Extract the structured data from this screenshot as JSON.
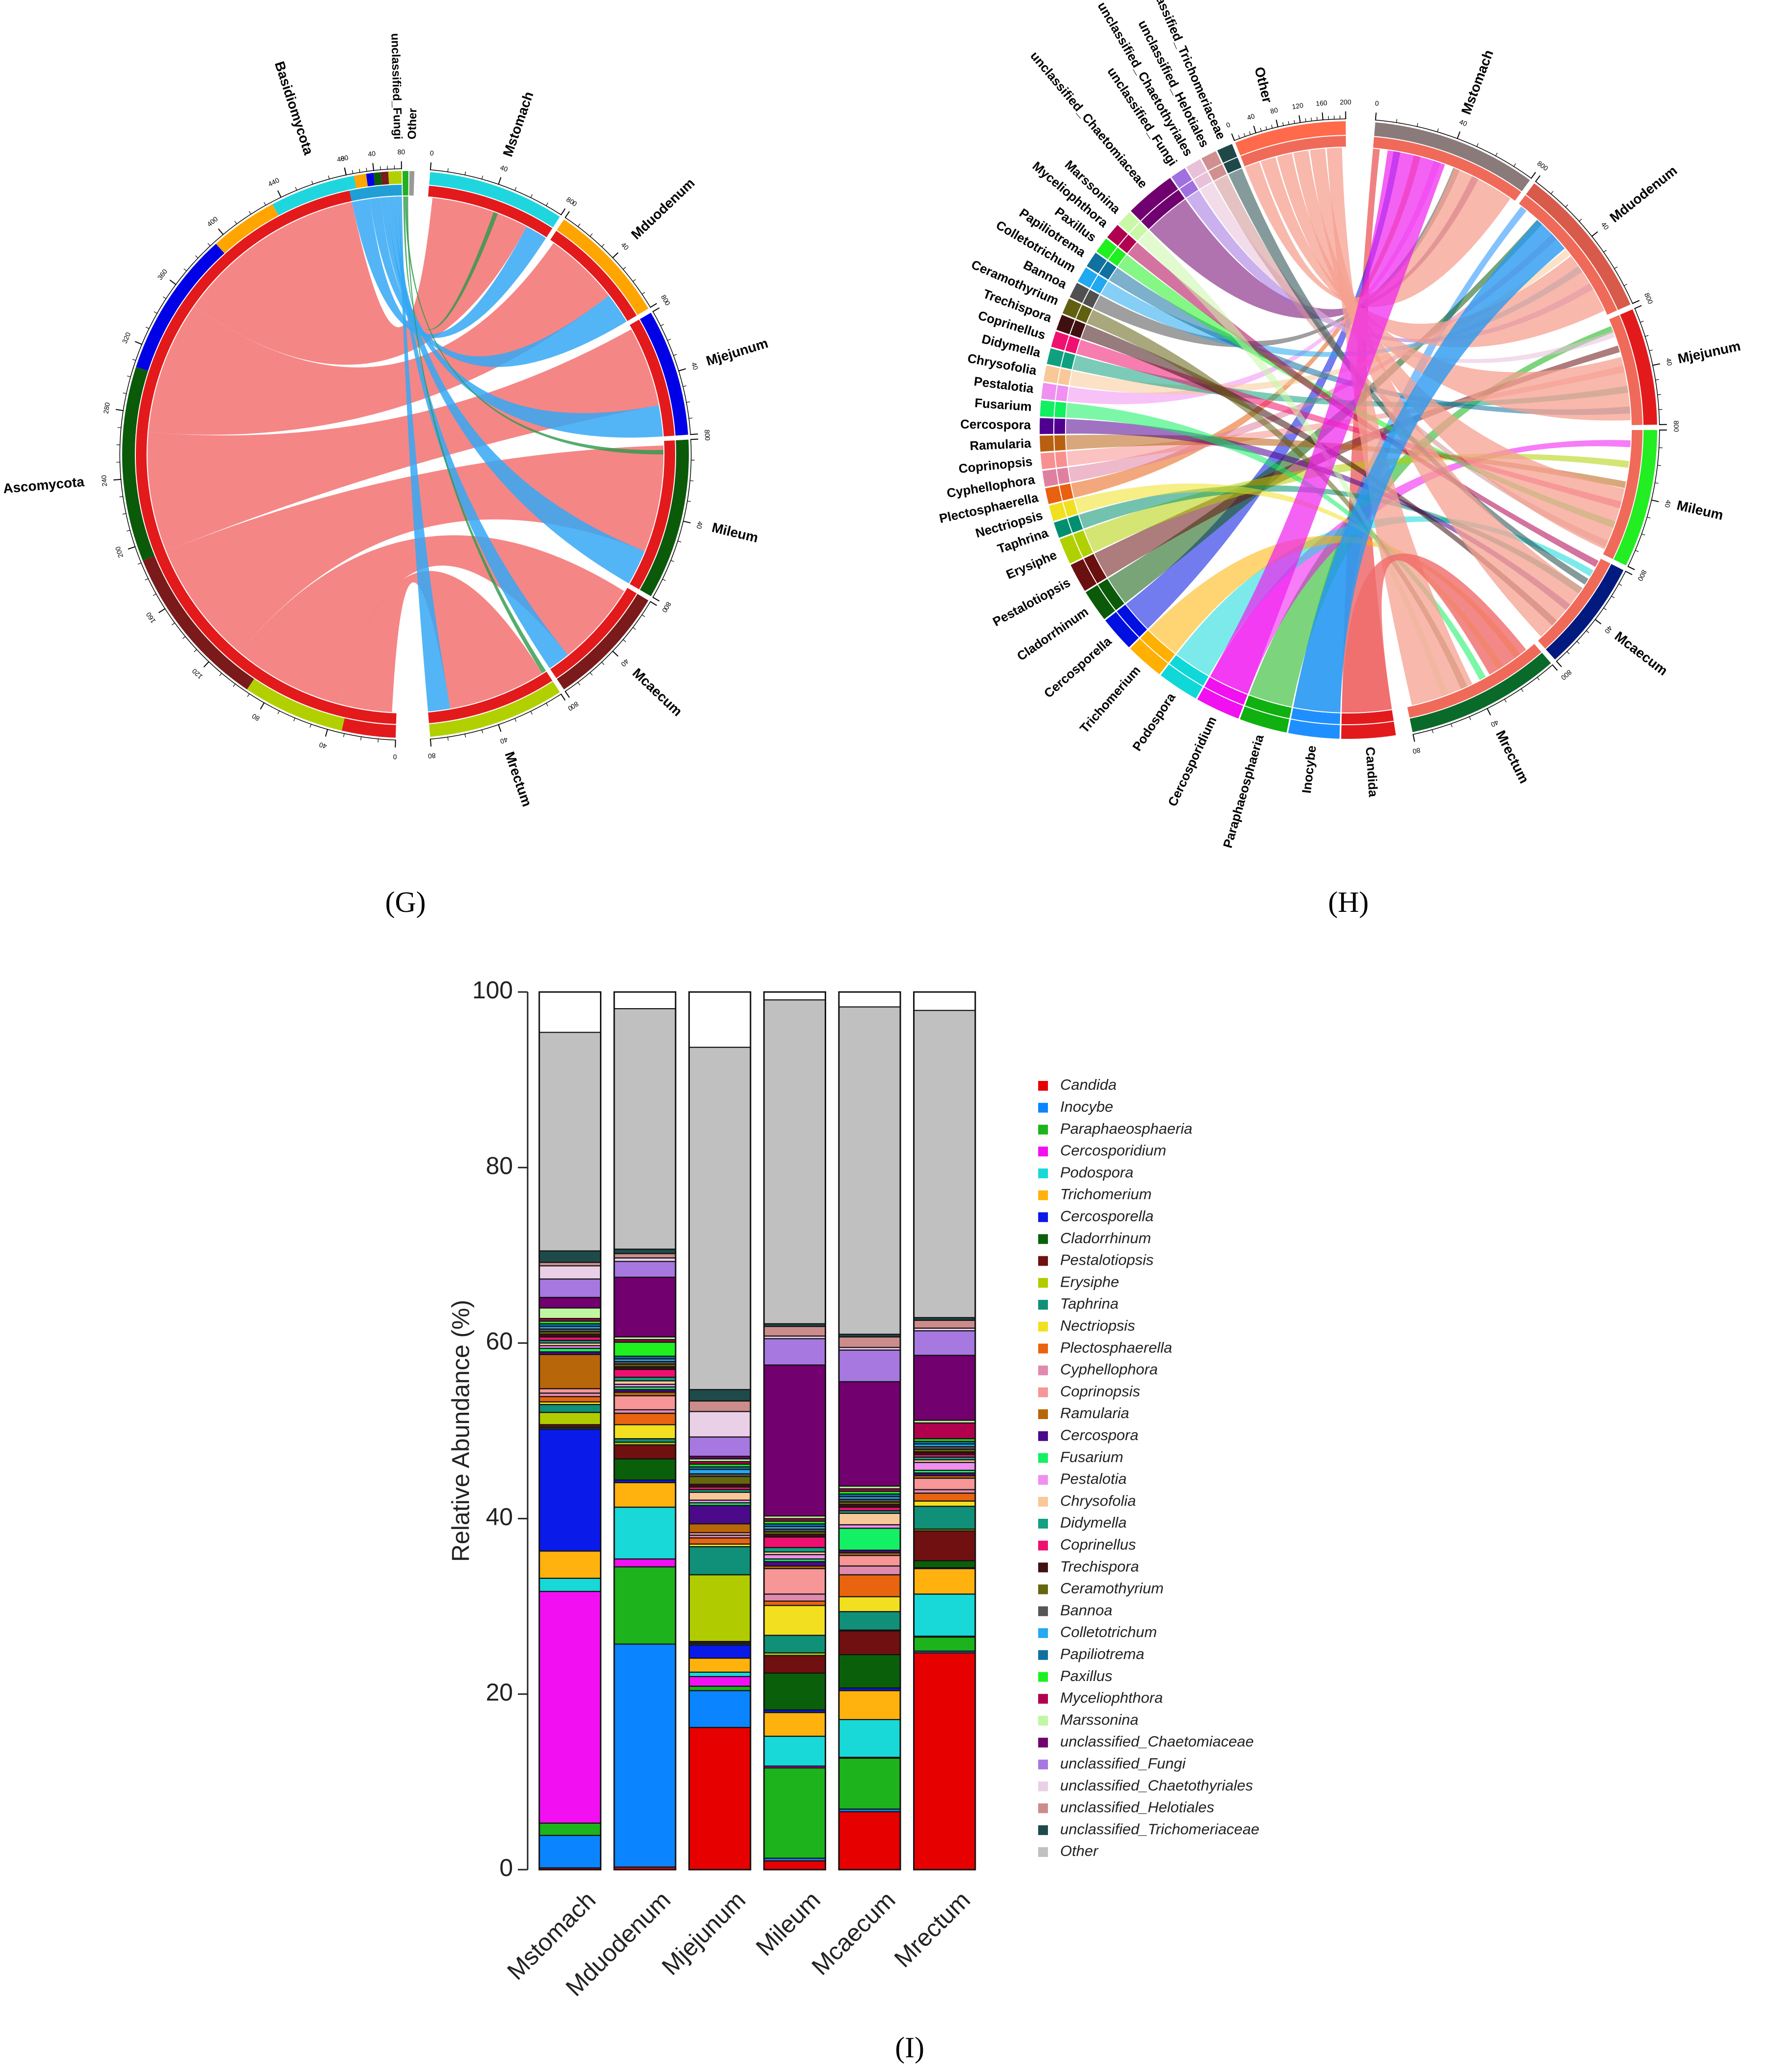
{
  "panel_labels": {
    "g": "(G)",
    "h": "(H)",
    "i": "(I)"
  },
  "colors": {
    "red": "#e31a1c",
    "cyan": "#1fd6de",
    "orange": "#ffa500",
    "blue": "#0000e6",
    "darkgreen": "#0a5a0a",
    "maroon": "#7a1a1a",
    "lime": "#b2d000",
    "grey": "#999999",
    "skyblue": "#35a8f5",
    "salmon": "#f47f7f",
    "green": "#1fb81f"
  },
  "chord_g": {
    "phyla": [
      {
        "name": "Ascomycota",
        "color": "#e31a1c",
        "ticks": [
          "0",
          "40",
          "80",
          "120",
          "160",
          "200",
          "240",
          "280",
          "320",
          "360",
          "400",
          "440",
          "480"
        ]
      },
      {
        "name": "Basidiomycota",
        "color": "#1f9fd6",
        "ticks": [
          "0",
          "40",
          "80"
        ]
      },
      {
        "name": "unclassified_Fungi",
        "color": "#20b020",
        "ticks": []
      },
      {
        "name": "Other",
        "color": "#999999",
        "ticks": []
      }
    ],
    "sites": [
      {
        "name": "Mstomach",
        "color": "#1fd6de",
        "ticks": [
          "0",
          "40",
          "80"
        ]
      },
      {
        "name": "Mduodenum",
        "color": "#ffa500",
        "ticks": [
          "0",
          "40",
          "80"
        ]
      },
      {
        "name": "Mjejunum",
        "color": "#0000e6",
        "ticks": [
          "0",
          "40",
          "80"
        ]
      },
      {
        "name": "Mileum",
        "color": "#0a5a0a",
        "ticks": [
          "0",
          "40",
          "80"
        ]
      },
      {
        "name": "Mcaecum",
        "color": "#7a1a1a",
        "ticks": [
          "0",
          "40",
          "80"
        ]
      },
      {
        "name": "Mrectum",
        "color": "#b2d000",
        "ticks": [
          "0",
          "40",
          "80"
        ]
      }
    ]
  },
  "chord_h": {
    "sites": [
      {
        "name": "Mstomach",
        "color": "#8a7a7a"
      },
      {
        "name": "Mduodenum",
        "color": "#d85a4a"
      },
      {
        "name": "Mjejunum",
        "color": "#e31a1c"
      },
      {
        "name": "Mileum",
        "color": "#22ee22"
      },
      {
        "name": "Mcaecum",
        "color": "#001a80"
      },
      {
        "name": "Mrectum",
        "color": "#0a6a2a"
      }
    ],
    "other_label": "Other",
    "other_ticks": [
      "0",
      "40",
      "80",
      "120",
      "160",
      "200"
    ],
    "genera": [
      {
        "name": "Candida",
        "color": "#e31a1c"
      },
      {
        "name": "Inocybe",
        "color": "#1f8fff"
      },
      {
        "name": "Paraphaeosphaeria",
        "color": "#10b010"
      },
      {
        "name": "Cercosporidium",
        "color": "#f010f0"
      },
      {
        "name": "Podospora",
        "color": "#10d8d8"
      },
      {
        "name": "Trichomerium",
        "color": "#ffb000"
      },
      {
        "name": "Cercosporella",
        "color": "#0010e0"
      },
      {
        "name": "Cladorrhinum",
        "color": "#0a5a0a"
      },
      {
        "name": "Pestalotiopsis",
        "color": "#6a1010"
      },
      {
        "name": "Erysiphe",
        "color": "#b0d000"
      },
      {
        "name": "Taphrina",
        "color": "#009070"
      },
      {
        "name": "Nectriopsis",
        "color": "#f0e020"
      },
      {
        "name": "Plectosphaerella",
        "color": "#e86010"
      },
      {
        "name": "Cyphellophora",
        "color": "#e080a0"
      },
      {
        "name": "Coprinopsis",
        "color": "#f89090"
      },
      {
        "name": "Ramularia",
        "color": "#b86010"
      },
      {
        "name": "Cercospora",
        "color": "#500090"
      },
      {
        "name": "Fusarium",
        "color": "#10f060"
      },
      {
        "name": "Pestalotia",
        "color": "#f090f0"
      },
      {
        "name": "Chrysofolia",
        "color": "#f8c898"
      },
      {
        "name": "Didymella",
        "color": "#10a080"
      },
      {
        "name": "Coprinellus",
        "color": "#f01070"
      },
      {
        "name": "Trechispora",
        "color": "#401010"
      },
      {
        "name": "Ceramothyrium",
        "color": "#606010"
      },
      {
        "name": "Bannoa",
        "color": "#505050"
      },
      {
        "name": "Colletotrichum",
        "color": "#20a8f0"
      },
      {
        "name": "Papiliotrema",
        "color": "#1070a0"
      },
      {
        "name": "Paxillus",
        "color": "#20f020"
      },
      {
        "name": "Myceliophthora",
        "color": "#b00050"
      },
      {
        "name": "Marssonina",
        "color": "#c8f8a8"
      },
      {
        "name": "unclassified_Chaetomiaceae",
        "color": "#700070"
      },
      {
        "name": "unclassified_Fungi",
        "color": "#a070e0"
      },
      {
        "name": "unclassified_Chaetothyriales",
        "color": "#e8c0d8"
      },
      {
        "name": "unclassified_Helotiales",
        "color": "#d09090"
      },
      {
        "name": "unclassified_Trichomeriaceae",
        "color": "#204848"
      }
    ]
  },
  "chart_data": {
    "type": "bar",
    "stacked": true,
    "title": "",
    "xlabel": "",
    "ylabel": "Relative Abundance (%)",
    "ylim": [
      0,
      100
    ],
    "yticks": [
      "0",
      "20",
      "40",
      "60",
      "80",
      "100"
    ],
    "categories": [
      "Mstomach",
      "Mduodenum",
      "Mjejunum",
      "Mileum",
      "Mcaecum",
      "Mrectum"
    ],
    "legend_position": "right",
    "series": [
      {
        "name": "Candida",
        "color": "#e60000",
        "values": [
          0.2,
          0.3,
          16.2,
          1.0,
          6.6,
          24.7
        ]
      },
      {
        "name": "Inocybe",
        "color": "#0a85ff",
        "values": [
          3.7,
          25.4,
          4.2,
          0.3,
          0.3,
          0.2
        ]
      },
      {
        "name": "Paraphaeosphaeria",
        "color": "#1cb31c",
        "values": [
          1.4,
          8.8,
          0.5,
          10.3,
          5.8,
          1.6
        ]
      },
      {
        "name": "Cercosporidium",
        "color": "#f20ff2",
        "values": [
          26.4,
          0.9,
          1.1,
          0.2,
          0.1,
          0.1
        ]
      },
      {
        "name": "Podospora",
        "color": "#19d8d8",
        "values": [
          1.5,
          5.9,
          0.5,
          3.4,
          4.3,
          4.8
        ]
      },
      {
        "name": "Trichomerium",
        "color": "#ffb20d",
        "values": [
          3.1,
          2.8,
          1.6,
          2.7,
          3.3,
          2.9
        ]
      },
      {
        "name": "Cercosporella",
        "color": "#0a1ae8",
        "values": [
          13.9,
          0.3,
          1.5,
          0.3,
          0.3,
          0.1
        ]
      },
      {
        "name": "Cladorrhinum",
        "color": "#0a600a",
        "values": [
          0.2,
          2.4,
          0.2,
          4.2,
          3.8,
          0.8
        ]
      },
      {
        "name": "Pestalotiopsis",
        "color": "#701010",
        "values": [
          0.3,
          1.6,
          0.2,
          2.0,
          2.7,
          3.4
        ]
      },
      {
        "name": "Erysiphe",
        "color": "#b0cc00",
        "values": [
          1.4,
          0.3,
          7.6,
          0.3,
          0.1,
          0.2
        ]
      },
      {
        "name": "Taphrina",
        "color": "#109078",
        "values": [
          0.9,
          0.4,
          3.2,
          2.0,
          2.1,
          2.6
        ]
      },
      {
        "name": "Nectriopsis",
        "color": "#f2e020",
        "values": [
          0.3,
          1.6,
          0.3,
          3.4,
          1.7,
          0.6
        ]
      },
      {
        "name": "Plectosphaerella",
        "color": "#e8640f",
        "values": [
          0.6,
          1.3,
          0.7,
          0.5,
          2.5,
          0.9
        ]
      },
      {
        "name": "Cyphellophora",
        "color": "#e08ab0",
        "values": [
          0.4,
          0.4,
          0.3,
          0.8,
          1.0,
          0.4
        ]
      },
      {
        "name": "Coprinopsis",
        "color": "#f79696",
        "values": [
          0.5,
          1.6,
          0.3,
          2.9,
          1.2,
          1.3
        ]
      },
      {
        "name": "Ramularia",
        "color": "#b8660a",
        "values": [
          3.9,
          0.4,
          1.0,
          0.3,
          0.3,
          0.3
        ]
      },
      {
        "name": "Cercospora",
        "color": "#4a0a8a",
        "values": [
          0.3,
          0.3,
          2.1,
          0.5,
          0.3,
          0.3
        ]
      },
      {
        "name": "Fusarium",
        "color": "#14f064",
        "values": [
          0.4,
          0.3,
          0.3,
          0.3,
          2.5,
          0.3
        ]
      },
      {
        "name": "Pestalotia",
        "color": "#f08ff0",
        "values": [
          0.3,
          0.3,
          0.3,
          0.5,
          0.4,
          0.9
        ]
      },
      {
        "name": "Chrysofolia",
        "color": "#f8c898",
        "values": [
          0.3,
          0.4,
          0.9,
          0.3,
          1.3,
          0.3
        ]
      },
      {
        "name": "Didymella",
        "color": "#10a082",
        "values": [
          0.3,
          0.4,
          0.3,
          0.5,
          0.3,
          0.3
        ]
      },
      {
        "name": "Coprinellus",
        "color": "#ee1070",
        "values": [
          0.4,
          0.9,
          0.3,
          1.2,
          0.4,
          0.3
        ]
      },
      {
        "name": "Trechispora",
        "color": "#421010",
        "values": [
          0.3,
          0.3,
          0.3,
          0.3,
          0.3,
          0.3
        ]
      },
      {
        "name": "Ceramothyrium",
        "color": "#666610",
        "values": [
          0.3,
          0.3,
          0.9,
          0.3,
          0.3,
          0.3
        ]
      },
      {
        "name": "Bannoa",
        "color": "#565656",
        "values": [
          0.3,
          0.3,
          0.3,
          0.3,
          0.3,
          0.3
        ]
      },
      {
        "name": "Colletotrichum",
        "color": "#24aaf2",
        "values": [
          0.3,
          0.3,
          0.5,
          0.3,
          0.3,
          0.3
        ]
      },
      {
        "name": "Papiliotrema",
        "color": "#1070a2",
        "values": [
          0.3,
          0.3,
          0.3,
          0.3,
          0.3,
          0.3
        ]
      },
      {
        "name": "Paxillus",
        "color": "#20f020",
        "values": [
          0.3,
          1.6,
          0.3,
          0.3,
          0.3,
          0.3
        ]
      },
      {
        "name": "Myceliophthora",
        "color": "#b0004e",
        "values": [
          0.3,
          0.3,
          0.3,
          0.3,
          0.3,
          1.8
        ]
      },
      {
        "name": "Marssonina",
        "color": "#c0f7a3",
        "values": [
          1.2,
          0.3,
          0.3,
          0.3,
          0.3,
          0.3
        ]
      },
      {
        "name": "unclassified_Chaetomiaceae",
        "color": "#72006e",
        "values": [
          1.2,
          6.8,
          0.3,
          17.2,
          11.9,
          7.4
        ]
      },
      {
        "name": "unclassified_Fungi",
        "color": "#a678e0",
        "values": [
          2.1,
          1.8,
          2.2,
          3.0,
          3.6,
          2.8
        ]
      },
      {
        "name": "unclassified_Chaetothyriales",
        "color": "#ead0e6",
        "values": [
          1.5,
          0.4,
          2.9,
          0.3,
          0.3,
          0.3
        ]
      },
      {
        "name": "unclassified_Helotiales",
        "color": "#cc8c8c",
        "values": [
          0.4,
          0.5,
          1.2,
          1.1,
          1.2,
          0.9
        ]
      },
      {
        "name": "unclassified_Trichomeriaceae",
        "color": "#1f4a4a",
        "values": [
          1.3,
          0.5,
          1.3,
          0.3,
          0.3,
          0.3
        ]
      },
      {
        "name": "Other",
        "color": "#c0c0c0",
        "values": [
          24.9,
          27.4,
          39.0,
          36.9,
          37.3,
          35.0
        ]
      }
    ]
  }
}
